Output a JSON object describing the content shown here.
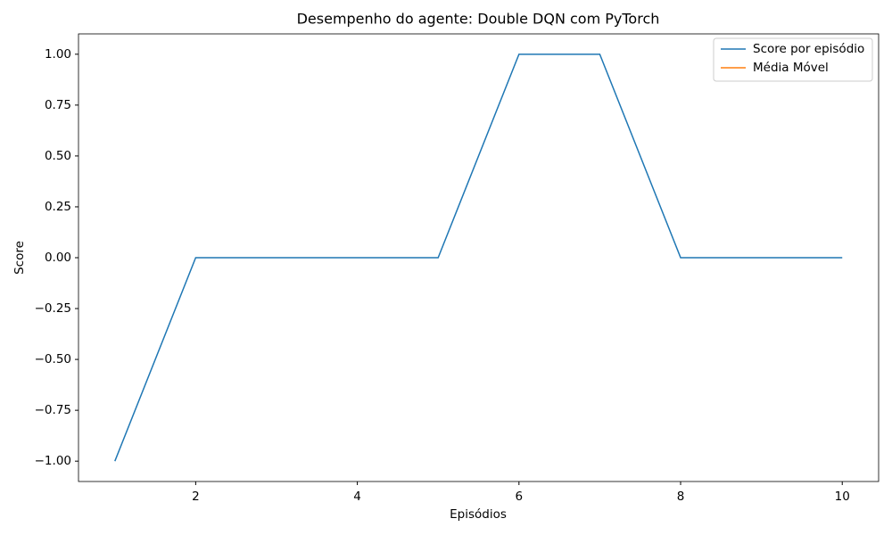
{
  "chart_data": {
    "type": "line",
    "title": "Desempenho do agente: Double DQN com PyTorch",
    "xlabel": "Episódios",
    "ylabel": "Score",
    "x": [
      1,
      2,
      3,
      4,
      5,
      6,
      7,
      8,
      9,
      10
    ],
    "series": [
      {
        "name": "Score por episódio",
        "color": "#1f77b4",
        "values": [
          -1,
          0,
          0,
          0,
          0,
          1,
          1,
          0,
          0,
          0
        ]
      },
      {
        "name": "Média Móvel",
        "color": "#ff7f0e",
        "values": [
          null,
          null,
          null,
          null,
          null,
          null,
          null,
          null,
          null,
          null
        ]
      }
    ],
    "xlim": [
      0.55,
      10.45
    ],
    "xticks": [
      2,
      4,
      6,
      8,
      10
    ],
    "ylim": [
      -1.1,
      1.1
    ],
    "yticks": [
      {
        "value": -1,
        "label": "−1.00"
      },
      {
        "value": -0.75,
        "label": "−0.75"
      },
      {
        "value": -0.5,
        "label": "−0.50"
      },
      {
        "value": -0.25,
        "label": "−0.25"
      },
      {
        "value": 0,
        "label": "0.00"
      },
      {
        "value": 0.25,
        "label": "0.25"
      },
      {
        "value": 0.5,
        "label": "0.50"
      },
      {
        "value": 0.75,
        "label": "0.75"
      },
      {
        "value": 1,
        "label": "1.00"
      }
    ],
    "grid": false,
    "legend": "upper right"
  }
}
